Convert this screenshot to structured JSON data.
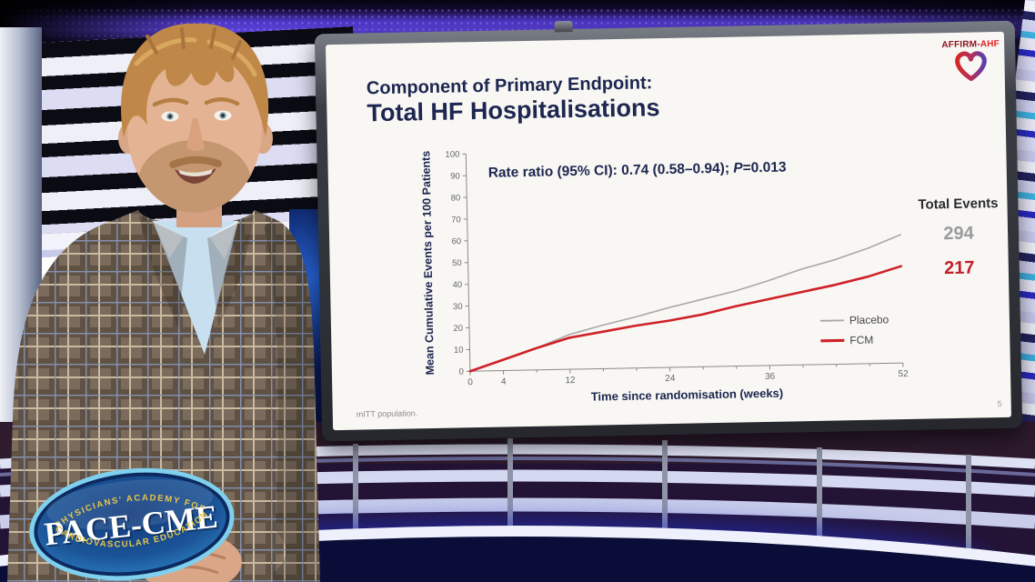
{
  "slide": {
    "title_line1": "Component of Primary Endpoint:",
    "title_line2": "Total HF Hospitalisations",
    "affirm_logo": {
      "text_dark": "AFFIRM-",
      "text_red": "AHF"
    },
    "rate_ratio": {
      "prefix": "Rate ratio (95% CI): 0.74 (0.58–0.94); ",
      "p_label": "P",
      "p_value": "=0.013"
    },
    "total_events_label": "Total Events",
    "footnote": "mITT population.",
    "page_number": "5"
  },
  "pace_logo": {
    "top_arc": "PHYSICIANS' ACADEMY FOR",
    "main": "PACE-CME",
    "bottom_arc": "CARDIOVASCULAR EDUCATION"
  },
  "colors": {
    "slide_navy": "#1c2650",
    "placebo_gray": "#a8a8a8",
    "fcm_red": "#cf2128",
    "total_placebo": "#9a9aa0",
    "total_fcm": "#c21f2a",
    "pace_gold": "#e8c54a"
  },
  "chart_data": {
    "type": "line",
    "title": "",
    "x": [
      0,
      4,
      8,
      12,
      16,
      20,
      24,
      28,
      32,
      36,
      40,
      44,
      48,
      52
    ],
    "series": [
      {
        "name": "Placebo",
        "color": "#a8a8a8",
        "total_events": 294,
        "values": [
          0,
          5,
          10,
          16,
          20,
          23.5,
          27.5,
          31,
          34.5,
          39,
          44,
          48,
          53,
          59
        ]
      },
      {
        "name": "FCM",
        "color": "#cf2128",
        "total_events": 217,
        "values": [
          0,
          5,
          10,
          14.5,
          17,
          19.5,
          21.5,
          24,
          27.5,
          30.5,
          33.5,
          36.5,
          40,
          44.5
        ]
      }
    ],
    "xlabel": "Time since randomisation (weeks)",
    "ylabel": "Mean Cumulative Events per 100 Patients",
    "xlim": [
      0,
      52
    ],
    "ylim": [
      0,
      100
    ],
    "x_major_ticks": [
      0,
      4,
      12,
      24,
      36,
      52
    ],
    "x_minor_ticks": [
      8,
      16,
      20,
      28,
      32,
      40,
      44,
      48
    ],
    "y_ticks": [
      0,
      10,
      20,
      30,
      40,
      50,
      60,
      70,
      80,
      90,
      100
    ],
    "annotation": "Rate ratio (95% CI): 0.74 (0.58–0.94); P=0.013",
    "legend_position": "lower right",
    "grid": false
  }
}
